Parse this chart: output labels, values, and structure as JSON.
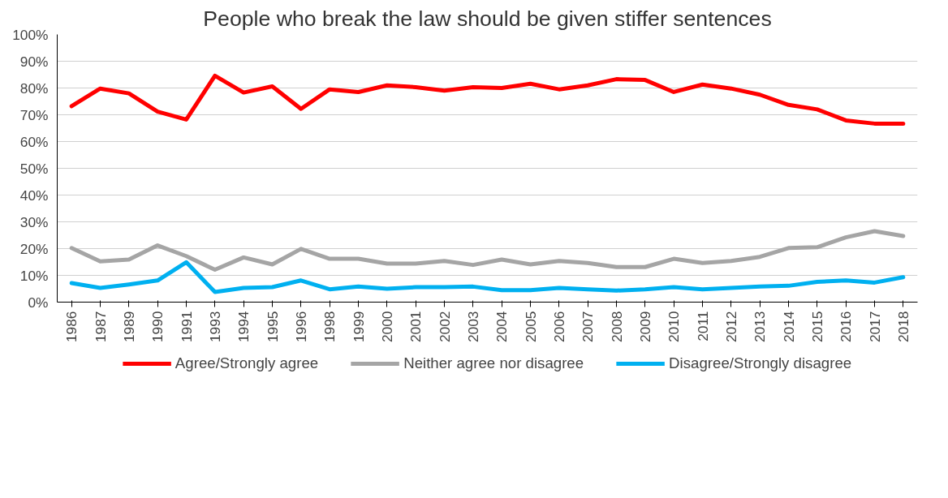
{
  "chart_data": {
    "type": "line",
    "title": "People who break the law should be given stiffer sentences",
    "categories": [
      "1986",
      "1987",
      "1989",
      "1990",
      "1991",
      "1993",
      "1994",
      "1995",
      "1996",
      "1998",
      "1999",
      "2000",
      "2001",
      "2002",
      "2003",
      "2004",
      "2005",
      "2006",
      "2007",
      "2008",
      "2009",
      "2010",
      "2011",
      "2012",
      "2013",
      "2014",
      "2015",
      "2016",
      "2017",
      "2018"
    ],
    "series": [
      {
        "name": "Agree/Strongly agree",
        "color": "#ff0000",
        "values": [
          73.2,
          79.8,
          78,
          71.2,
          68.2,
          84.6,
          78.3,
          80.6,
          72.2,
          79.5,
          78.5,
          81,
          80.3,
          79,
          80.3,
          80,
          81.6,
          79.5,
          81,
          83.3,
          83,
          78.5,
          81.3,
          79.8,
          77.5,
          73.7,
          72,
          67.9,
          66.7,
          66.7
        ]
      },
      {
        "name": "Neither agree nor disagree",
        "color": "#a5a5a5",
        "values": [
          20.2,
          15.2,
          15.9,
          21.2,
          17.2,
          12.1,
          16.7,
          14.1,
          19.9,
          16.2,
          16.2,
          14.4,
          14.4,
          15.4,
          13.9,
          15.9,
          14.1,
          15.4,
          14.6,
          13.1,
          13.1,
          16.2,
          14.6,
          15.4,
          16.9,
          20.2,
          20.5,
          24.2,
          26.5,
          24.7
        ]
      },
      {
        "name": "Disagree/Strongly disagree",
        "color": "#00b0f0",
        "values": [
          7.1,
          5.3,
          6.6,
          8.1,
          14.9,
          3.8,
          5.3,
          5.6,
          8.1,
          4.8,
          5.8,
          5,
          5.6,
          5.6,
          5.8,
          4.5,
          4.5,
          5.3,
          4.8,
          4.3,
          4.8,
          5.6,
          4.8,
          5.3,
          5.8,
          6.1,
          7.6,
          8.1,
          7.3,
          9.3
        ]
      }
    ],
    "ylim": [
      0,
      100
    ],
    "yticks": [
      {
        "value": 0,
        "label": "0%"
      },
      {
        "value": 10,
        "label": "10%"
      },
      {
        "value": 20,
        "label": "20%"
      },
      {
        "value": 30,
        "label": "30%"
      },
      {
        "value": 40,
        "label": "40%"
      },
      {
        "value": 50,
        "label": "50%"
      },
      {
        "value": 60,
        "label": "60%"
      },
      {
        "value": 70,
        "label": "70%"
      },
      {
        "value": 80,
        "label": "80%"
      },
      {
        "value": 90,
        "label": "90%"
      },
      {
        "value": 100,
        "label": "100%"
      }
    ],
    "grid": "y",
    "legend": "bottom",
    "marker": "none",
    "line_style": "solid"
  }
}
